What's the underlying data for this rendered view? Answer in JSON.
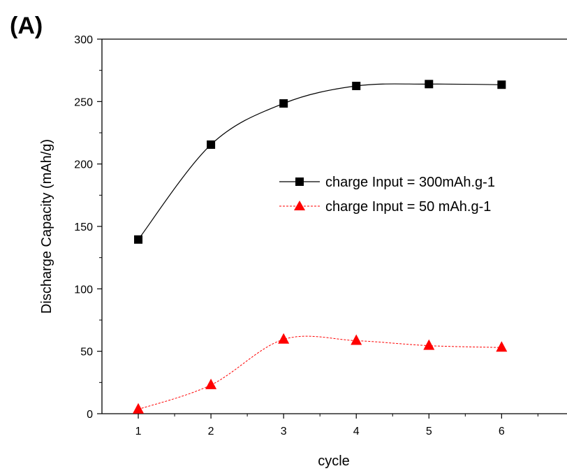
{
  "chart_data": {
    "type": "line",
    "panel_label": "(A)",
    "xlabel": "cycle",
    "ylabel": "Discharge Capacity (mAh/g)",
    "x": [
      1,
      2,
      3,
      4,
      5,
      6
    ],
    "x_ticks": [
      "1",
      "2",
      "3",
      "4",
      "5",
      "6"
    ],
    "y_ticks": [
      "0",
      "50",
      "100",
      "150",
      "200",
      "250",
      "300"
    ],
    "xlim": [
      0.5,
      6.9
    ],
    "ylim": [
      0,
      300
    ],
    "legend_position": "center-right",
    "grid": false,
    "series": [
      {
        "name": "charge Input = 300mAh.g-1",
        "color": "#000000",
        "marker": "square",
        "line": "solid",
        "values": [
          139.5,
          215.5,
          248.5,
          262.5,
          264,
          263.5
        ]
      },
      {
        "name": "charge Input = 50 mAh.g-1",
        "color": "#ff0000",
        "marker": "triangle",
        "line": "dashed",
        "values": [
          3.5,
          23,
          59.5,
          58.5,
          54.5,
          53
        ]
      }
    ]
  }
}
